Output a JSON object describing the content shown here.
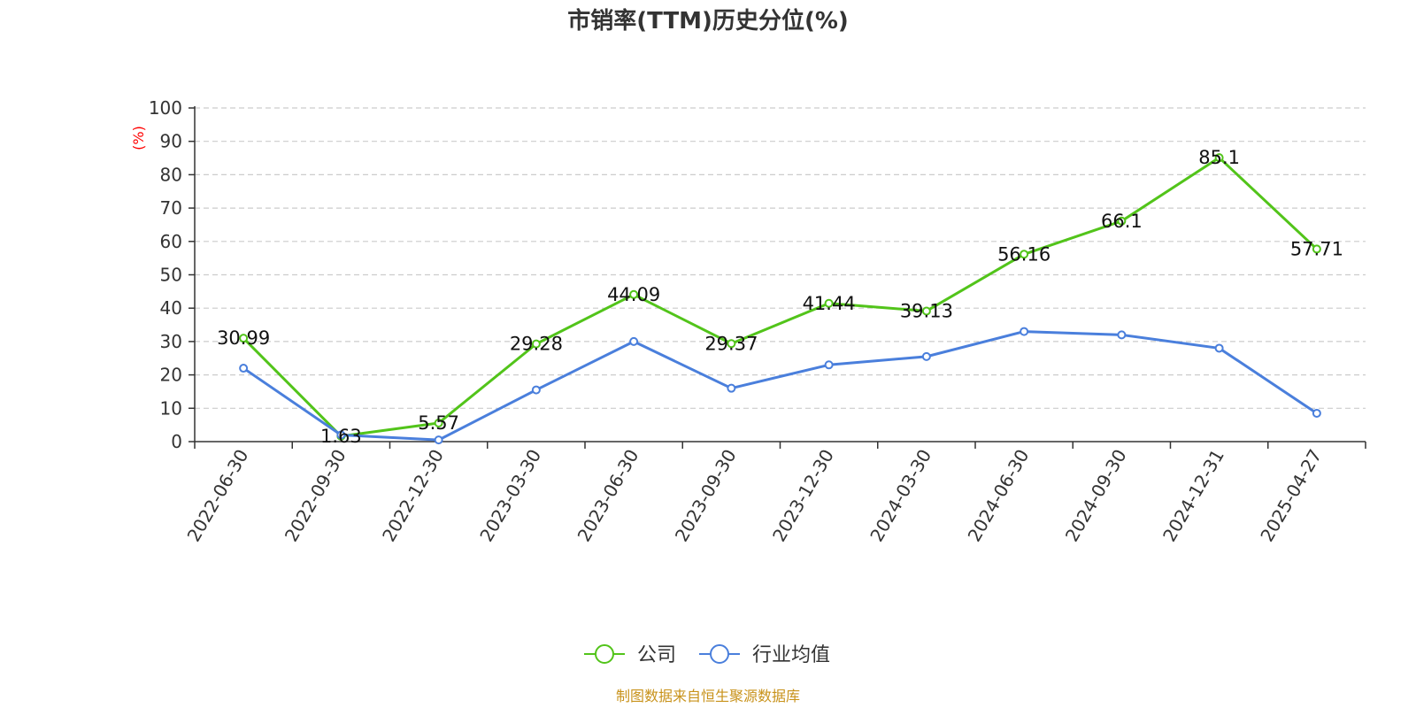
{
  "chart_data": {
    "type": "line",
    "title": "市销率(TTM)历史分位(%)",
    "ylabel": "(%)",
    "xlabel": "",
    "ylim": [
      0,
      100
    ],
    "yticks": [
      "0",
      "10",
      "20",
      "30",
      "40",
      "50",
      "60",
      "70",
      "80",
      "90",
      "100"
    ],
    "categories": [
      "2022-06-30",
      "2022-09-30",
      "2022-12-30",
      "2023-03-30",
      "2023-06-30",
      "2023-09-30",
      "2023-12-30",
      "2024-03-30",
      "2024-06-30",
      "2024-09-30",
      "2024-12-31",
      "2025-04-27"
    ],
    "grid": true,
    "legend_position": "bottom",
    "series": [
      {
        "name": "公司",
        "color": "#52c41a",
        "values": [
          30.99,
          1.63,
          5.57,
          29.28,
          44.09,
          29.37,
          41.44,
          39.13,
          56.16,
          66.1,
          85.1,
          57.71
        ],
        "labels": [
          "30.99",
          "1.63",
          "5.57",
          "29.28",
          "44.09",
          "29.37",
          "41.44",
          "39.13",
          "56.16",
          "66.1",
          "85.1",
          "57.71"
        ]
      },
      {
        "name": "行业均值",
        "color": "#4a7fdc",
        "values": [
          22,
          2,
          0.5,
          15.5,
          30,
          16,
          23,
          25.5,
          33,
          32,
          28,
          8.5
        ]
      }
    ],
    "source_note": "制图数据来自恒生聚源数据库"
  }
}
